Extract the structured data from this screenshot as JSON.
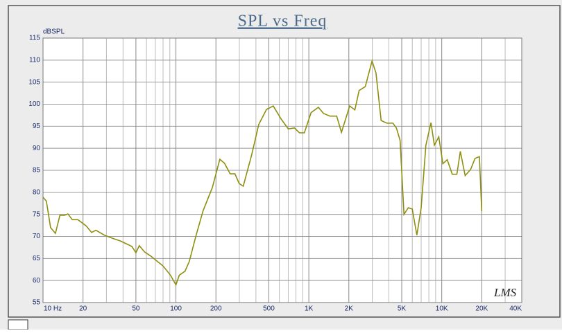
{
  "chart_data": {
    "type": "line",
    "title": "SPL vs Freq",
    "y_axis_label": "dBSPL",
    "watermark": "LMS",
    "log_x": true,
    "grid": true,
    "xlim": [
      10,
      40000
    ],
    "ylim": [
      55,
      115
    ],
    "yticks": [
      55,
      60,
      65,
      70,
      75,
      80,
      85,
      90,
      95,
      100,
      105,
      110,
      115
    ],
    "xticks": [
      {
        "value": 10,
        "label": "10 Hz"
      },
      20,
      50,
      100,
      200,
      500,
      {
        "value": 1000,
        "label": "1K"
      },
      {
        "value": 2000,
        "label": "2K"
      },
      {
        "value": 5000,
        "label": "5K"
      },
      {
        "value": 10000,
        "label": "10K"
      },
      {
        "value": 20000,
        "label": "20K"
      },
      {
        "value": 40000,
        "label": "40K"
      }
    ],
    "x_minor_grid": [
      30,
      40,
      60,
      70,
      80,
      90,
      300,
      400,
      600,
      700,
      800,
      900,
      3000,
      4000,
      6000,
      7000,
      8000,
      9000,
      30000
    ],
    "series": [
      {
        "name": "SPL",
        "color": "#8e8e10",
        "x": [
          10,
          10.6,
          11.4,
          12.4,
          13.4,
          14.5,
          15.4,
          16.6,
          18.3,
          21.1,
          23.2,
          25,
          28.9,
          33.8,
          38,
          44,
          46.7,
          50,
          53,
          58,
          65,
          72,
          80,
          91,
          100,
          106,
          117,
          126,
          142,
          160,
          188,
          214,
          232,
          256,
          278,
          299,
          321,
          370,
          420,
          480,
          540,
          620,
          700,
          780,
          850,
          925,
          1040,
          1180,
          1290,
          1440,
          1620,
          1760,
          2030,
          2220,
          2390,
          2660,
          2990,
          3200,
          3500,
          3860,
          4290,
          4560,
          4860,
          5200,
          5600,
          6000,
          6500,
          7000,
          7600,
          8300,
          8800,
          9500,
          10200,
          11000,
          12000,
          13000,
          13800,
          15000,
          16500,
          17800,
          19200,
          20000
        ],
        "values": [
          78.9,
          78,
          72,
          70.7,
          74.8,
          74.8,
          75.1,
          73.8,
          73.8,
          72.4,
          70.9,
          71.4,
          70.3,
          69.5,
          69,
          68.1,
          67.7,
          66.3,
          67.9,
          66.5,
          65.5,
          64.4,
          63.3,
          61.2,
          59,
          61.2,
          62.1,
          64.3,
          70.3,
          75.8,
          81.1,
          87.5,
          86.6,
          84.2,
          84.2,
          82,
          81.4,
          88.3,
          95.4,
          98.8,
          99.6,
          96.6,
          94.4,
          94.6,
          93.5,
          93.5,
          98.1,
          99.3,
          97.9,
          97.3,
          97.3,
          93.6,
          99.6,
          98.7,
          103.1,
          104,
          109.8,
          107.1,
          96.3,
          95.7,
          95.7,
          94.6,
          91.8,
          75,
          76.5,
          76.2,
          70.3,
          76.5,
          90.7,
          95.8,
          90.7,
          92.6,
          86.5,
          87.4,
          84.1,
          84.1,
          89.3,
          83.8,
          85.2,
          87.7,
          88.1,
          75.7
        ]
      }
    ]
  }
}
